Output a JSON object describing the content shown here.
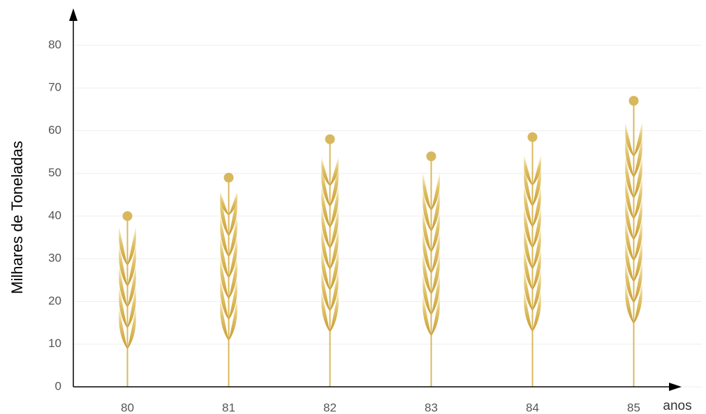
{
  "chart_data": {
    "type": "pictograph",
    "y_label": "Milhares de Toneladas",
    "x_label": "anos",
    "categories": [
      "80",
      "81",
      "82",
      "83",
      "84",
      "85"
    ],
    "values": [
      40,
      49,
      58,
      54,
      58.5,
      67
    ],
    "color": "#d8b85e",
    "ylim": [
      0,
      88
    ],
    "yticks": [
      0,
      10,
      20,
      30,
      40,
      50,
      60,
      70,
      80
    ],
    "grid": true
  }
}
